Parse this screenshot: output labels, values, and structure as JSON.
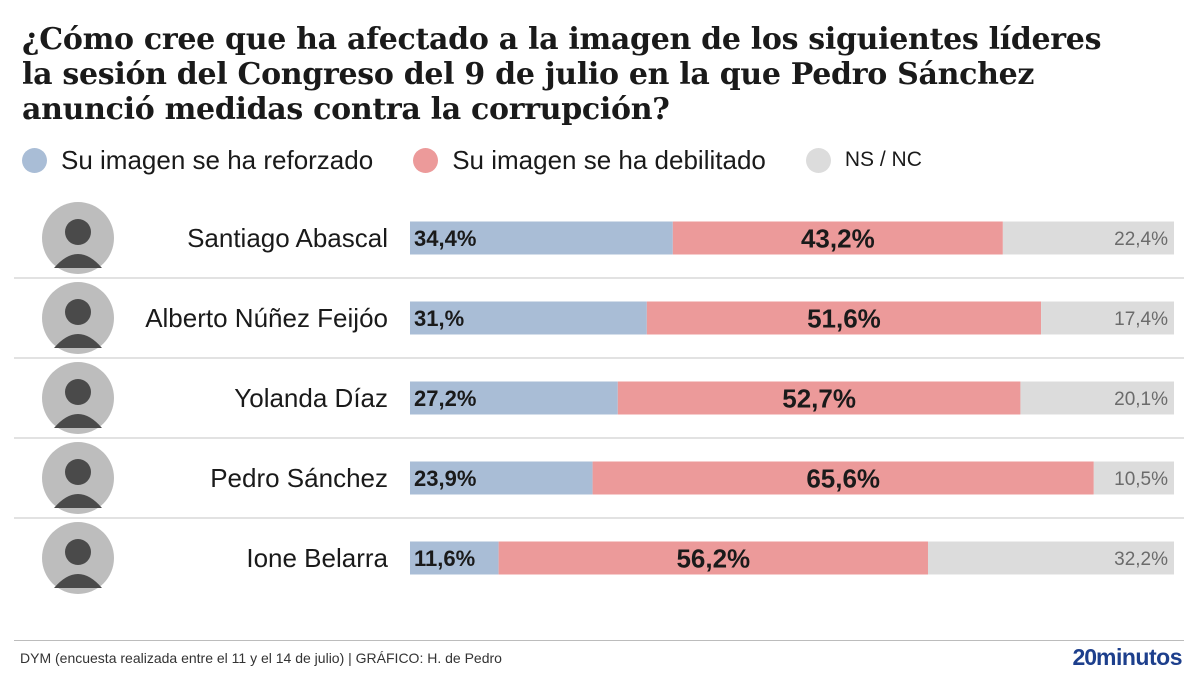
{
  "title_lines": [
    "¿Cómo cree que ha afectado a la imagen de los siguientes líderes",
    "la sesión del Congreso del 9 de julio en la que Pedro Sánchez",
    "anunció medidas contra la corrupción?"
  ],
  "colors": {
    "reforzado": "#a9bdd6",
    "debilitado": "#ec9a9a",
    "nsnc": "#dcdcdc",
    "brand": "#1d3f8c"
  },
  "legend": [
    {
      "label": "Su imagen se ha reforzado",
      "color": "#a9bdd6"
    },
    {
      "label": "Su imagen se ha debilitado",
      "color": "#ec9a9a"
    },
    {
      "label": "NS / NC",
      "color": "#dcdcdc"
    }
  ],
  "chart_data": {
    "type": "bar",
    "orientation": "horizontal",
    "stacked": true,
    "title": "¿Cómo cree que ha afectado a la imagen de los siguientes líderes la sesión del Congreso del 9 de julio en la que Pedro Sánchez anunció medidas contra la corrupción?",
    "categories": [
      "Santiago Abascal",
      "Alberto Núñez Feijóo",
      "Yolanda Díaz",
      "Pedro Sánchez",
      "Ione Belarra"
    ],
    "series": [
      {
        "name": "Su imagen se ha reforzado",
        "values": [
          34.4,
          31.0,
          27.2,
          23.9,
          11.6
        ],
        "labels": [
          "34,4%",
          "31,%",
          "27,2%",
          "23,9%",
          "11,6%"
        ],
        "color": "#a9bdd6"
      },
      {
        "name": "Su imagen se ha debilitado",
        "values": [
          43.2,
          51.6,
          52.7,
          65.6,
          56.2
        ],
        "labels": [
          "43,2%",
          "51,6%",
          "52,7%",
          "65,6%",
          "56,2%"
        ],
        "color": "#ec9a9a"
      },
      {
        "name": "NS / NC",
        "values": [
          22.4,
          17.4,
          20.1,
          10.5,
          32.2
        ],
        "labels": [
          "22,4%",
          "17,4%",
          "20,1%",
          "10,5%",
          "32,2%"
        ],
        "color": "#dcdcdc"
      }
    ],
    "xlim": [
      0,
      100
    ],
    "legend_position": "top"
  },
  "footer": {
    "source": "DYM (encuesta realizada entre el 11 y el 14 de julio)   |  GRÁFICO: H. de Pedro",
    "brand_num": "20",
    "brand_text": "minutos"
  }
}
